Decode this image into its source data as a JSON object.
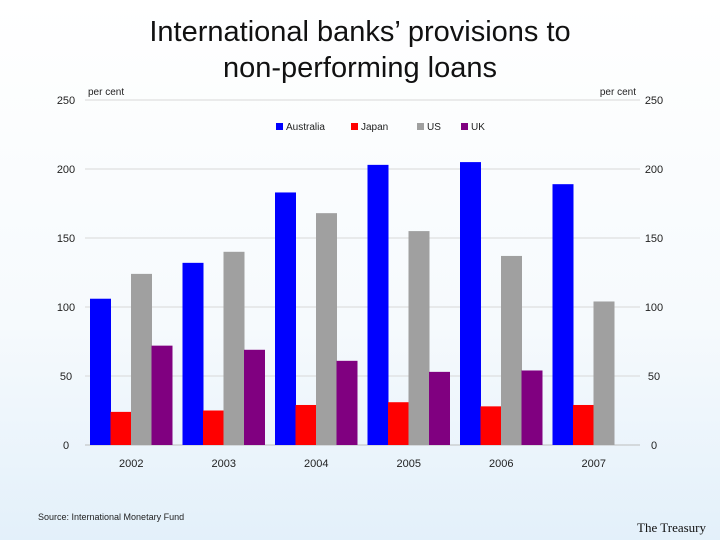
{
  "title_lines": [
    "International banks’ provisions to",
    "non-performing loans"
  ],
  "source": "Source: International Monetary Fund",
  "footer_logo": "The Treasury",
  "chart_data": {
    "type": "bar",
    "title": "International banks’ provisions to non-performing loans",
    "y_unit_left": "per cent",
    "y_unit_right": "per cent",
    "ylim": [
      0,
      250
    ],
    "yticks": [
      0,
      50,
      100,
      150,
      200,
      250
    ],
    "grid": true,
    "legend_position": "top-center",
    "categories": [
      "2002",
      "2003",
      "2004",
      "2005",
      "2006",
      "2007"
    ],
    "series": [
      {
        "name": "Australia",
        "color": "#0000ff",
        "values": [
          106,
          132,
          183,
          203,
          205,
          189
        ]
      },
      {
        "name": "Japan",
        "color": "#ff0000",
        "values": [
          24,
          25,
          29,
          31,
          28,
          29
        ]
      },
      {
        "name": "US",
        "color": "#a0a0a0",
        "values": [
          124,
          140,
          168,
          155,
          137,
          104
        ]
      },
      {
        "name": "UK",
        "color": "#800080",
        "values": [
          72,
          69,
          61,
          53,
          54,
          null
        ]
      }
    ]
  }
}
